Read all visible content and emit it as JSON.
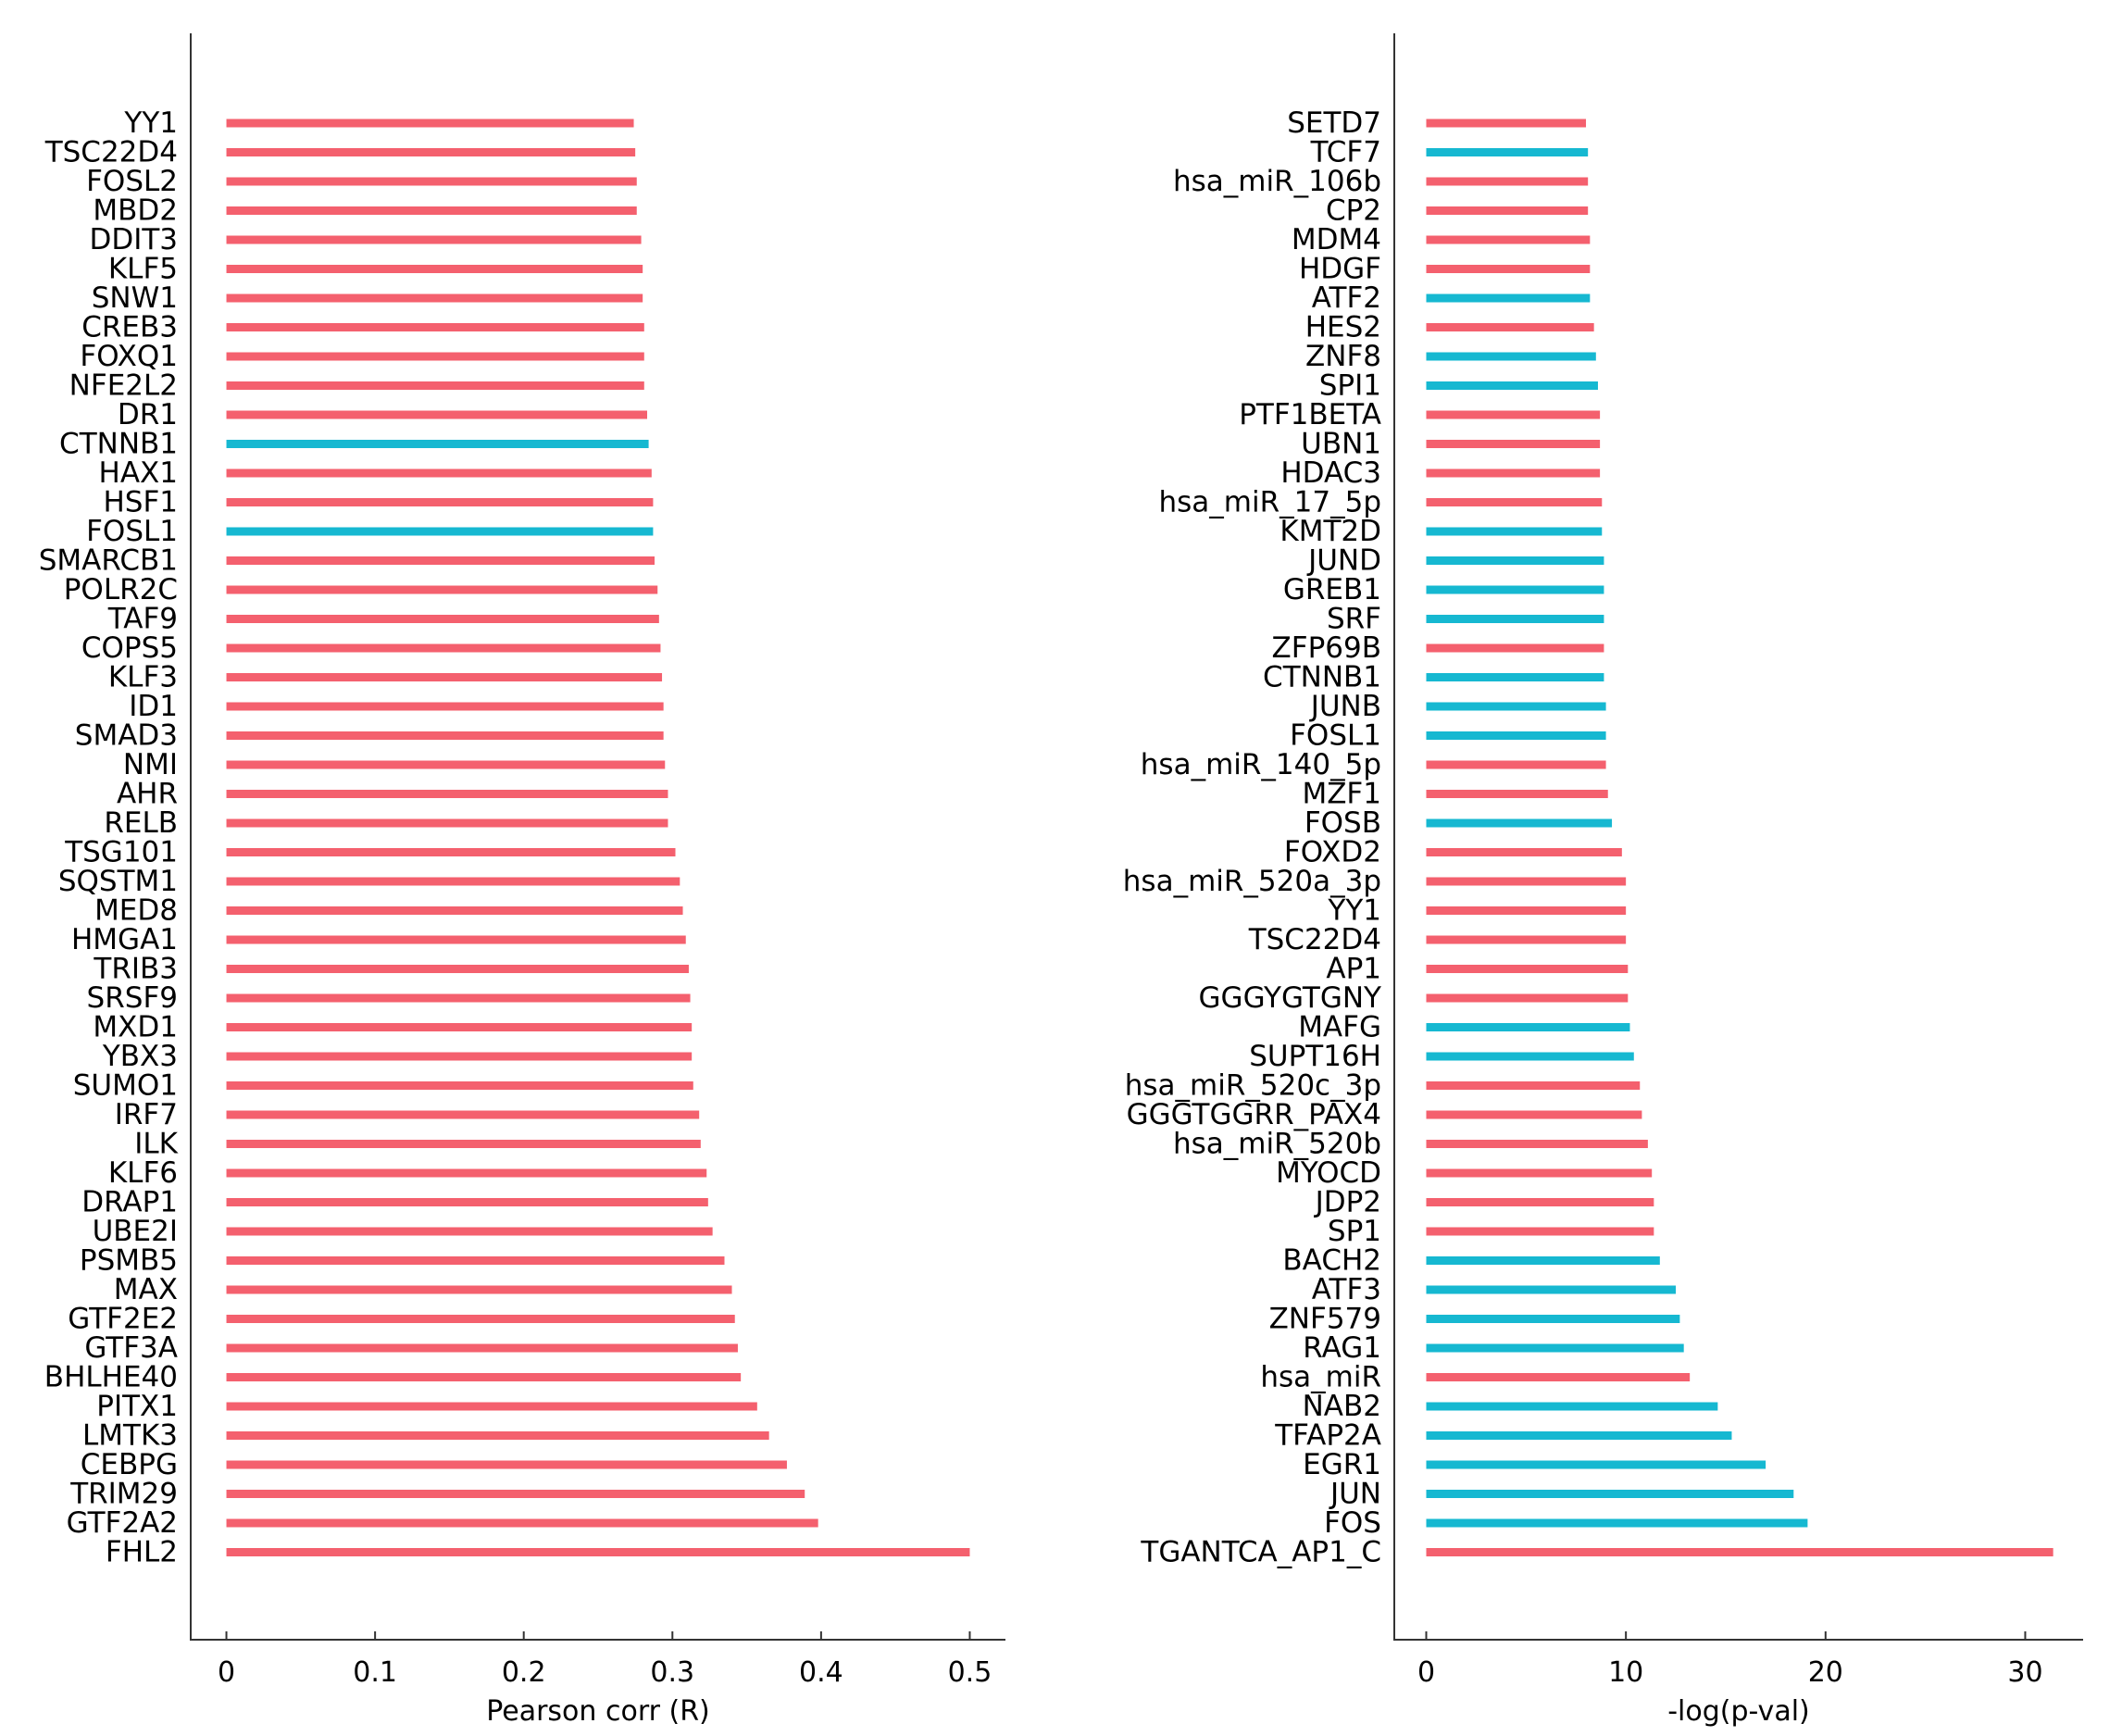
{
  "colors": {
    "positive": "#f4606e",
    "negative": "#16b8d1"
  },
  "chart_data": [
    {
      "type": "bar",
      "orientation": "horizontal",
      "xlabel": "Pearson corr (R)",
      "xlim": [
        -0.024,
        0.524
      ],
      "xticks": [
        0,
        0.1,
        0.2,
        0.3,
        0.4,
        0.5
      ],
      "xtick_labels": [
        "0",
        "0.1",
        "0.2",
        "0.3",
        "0.4",
        "0.5"
      ],
      "categories": [
        "YY1",
        "TSC22D4",
        "FOSL2",
        "MBD2",
        "DDIT3",
        "KLF5",
        "SNW1",
        "CREB3",
        "FOXQ1",
        "NFE2L2",
        "DR1",
        "CTNNB1",
        "HAX1",
        "HSF1",
        "FOSL1",
        "SMARCB1",
        "POLR2C",
        "TAF9",
        "COPS5",
        "KLF3",
        "ID1",
        "SMAD3",
        "NMI",
        "AHR",
        "RELB",
        "TSG101",
        "SQSTM1",
        "MED8",
        "HMGA1",
        "TRIB3",
        "SRSF9",
        "MXD1",
        "YBX3",
        "SUMO1",
        "IRF7",
        "ILK",
        "KLF6",
        "DRAP1",
        "UBE2I",
        "PSMB5",
        "MAX",
        "GTF2E2",
        "GTF3A",
        "BHLHE40",
        "PITX1",
        "LMTK3",
        "CEBPG",
        "TRIM29",
        "GTF2A2",
        "FHL2"
      ],
      "values": [
        0.274,
        0.275,
        0.276,
        0.276,
        0.279,
        0.28,
        0.28,
        0.281,
        0.281,
        0.281,
        0.283,
        0.284,
        0.286,
        0.287,
        0.287,
        0.288,
        0.29,
        0.291,
        0.292,
        0.293,
        0.294,
        0.294,
        0.295,
        0.297,
        0.297,
        0.302,
        0.305,
        0.307,
        0.309,
        0.311,
        0.312,
        0.313,
        0.313,
        0.314,
        0.318,
        0.319,
        0.323,
        0.324,
        0.327,
        0.335,
        0.34,
        0.342,
        0.344,
        0.346,
        0.357,
        0.365,
        0.377,
        0.389,
        0.398,
        0.5
      ],
      "bar_colors": [
        "positive",
        "positive",
        "positive",
        "positive",
        "positive",
        "positive",
        "positive",
        "positive",
        "positive",
        "positive",
        "positive",
        "negative",
        "positive",
        "positive",
        "negative",
        "positive",
        "positive",
        "positive",
        "positive",
        "positive",
        "positive",
        "positive",
        "positive",
        "positive",
        "positive",
        "positive",
        "positive",
        "positive",
        "positive",
        "positive",
        "positive",
        "positive",
        "positive",
        "positive",
        "positive",
        "positive",
        "positive",
        "positive",
        "positive",
        "positive",
        "positive",
        "positive",
        "positive",
        "positive",
        "positive",
        "positive",
        "positive",
        "positive",
        "positive",
        "positive"
      ]
    },
    {
      "type": "bar",
      "orientation": "horizontal",
      "xlabel": "-log(p-val)",
      "xlim": [
        -1.6,
        32.9
      ],
      "xticks": [
        0,
        10,
        20,
        30
      ],
      "xtick_labels": [
        "0",
        "10",
        "20",
        "30"
      ],
      "categories": [
        "SETD7",
        "TCF7",
        "hsa_miR_106b",
        "CP2",
        "MDM4",
        "HDGF",
        "ATF2",
        "HES2",
        "ZNF8",
        "SPI1",
        "PTF1BETA",
        "UBN1",
        "HDAC3",
        "hsa_miR_17_5p",
        "KMT2D",
        "JUND",
        "GREB1",
        "SRF",
        "ZFP69B",
        "CTNNB1",
        "JUNB",
        "FOSL1",
        "hsa_miR_140_5p",
        "MZF1",
        "FOSB",
        "FOXD2",
        "hsa_miR_520a_3p",
        "YY1",
        "TSC22D4",
        "AP1",
        "GGGYGTGNY",
        "MAFG",
        "SUPT16H",
        "hsa_miR_520c_3p",
        "GGGTGGRR_PAX4",
        "hsa_miR_520b",
        "MYOCD",
        "JDP2",
        "SP1",
        "BACH2",
        "ATF3",
        "ZNF579",
        "RAG1",
        "hsa_miR",
        "NAB2",
        "TFAP2A",
        "EGR1",
        "JUN",
        "FOS",
        "TGANTCA_AP1_C"
      ],
      "values": [
        8.0,
        8.1,
        8.1,
        8.1,
        8.2,
        8.2,
        8.2,
        8.4,
        8.5,
        8.6,
        8.7,
        8.7,
        8.7,
        8.8,
        8.8,
        8.9,
        8.9,
        8.9,
        8.9,
        8.9,
        9.0,
        9.0,
        9.0,
        9.1,
        9.3,
        9.8,
        10.0,
        10.0,
        10.0,
        10.1,
        10.1,
        10.2,
        10.4,
        10.7,
        10.8,
        11.1,
        11.3,
        11.4,
        11.4,
        11.7,
        12.5,
        12.7,
        12.9,
        13.2,
        14.6,
        15.3,
        17.0,
        18.4,
        19.1,
        31.4
      ],
      "bar_colors": [
        "positive",
        "negative",
        "positive",
        "positive",
        "positive",
        "positive",
        "negative",
        "positive",
        "negative",
        "negative",
        "positive",
        "positive",
        "positive",
        "positive",
        "negative",
        "negative",
        "negative",
        "negative",
        "positive",
        "negative",
        "negative",
        "negative",
        "positive",
        "positive",
        "negative",
        "positive",
        "positive",
        "positive",
        "positive",
        "positive",
        "positive",
        "negative",
        "negative",
        "positive",
        "positive",
        "positive",
        "positive",
        "positive",
        "positive",
        "negative",
        "negative",
        "negative",
        "negative",
        "positive",
        "negative",
        "negative",
        "negative",
        "negative",
        "negative",
        "positive"
      ]
    }
  ]
}
